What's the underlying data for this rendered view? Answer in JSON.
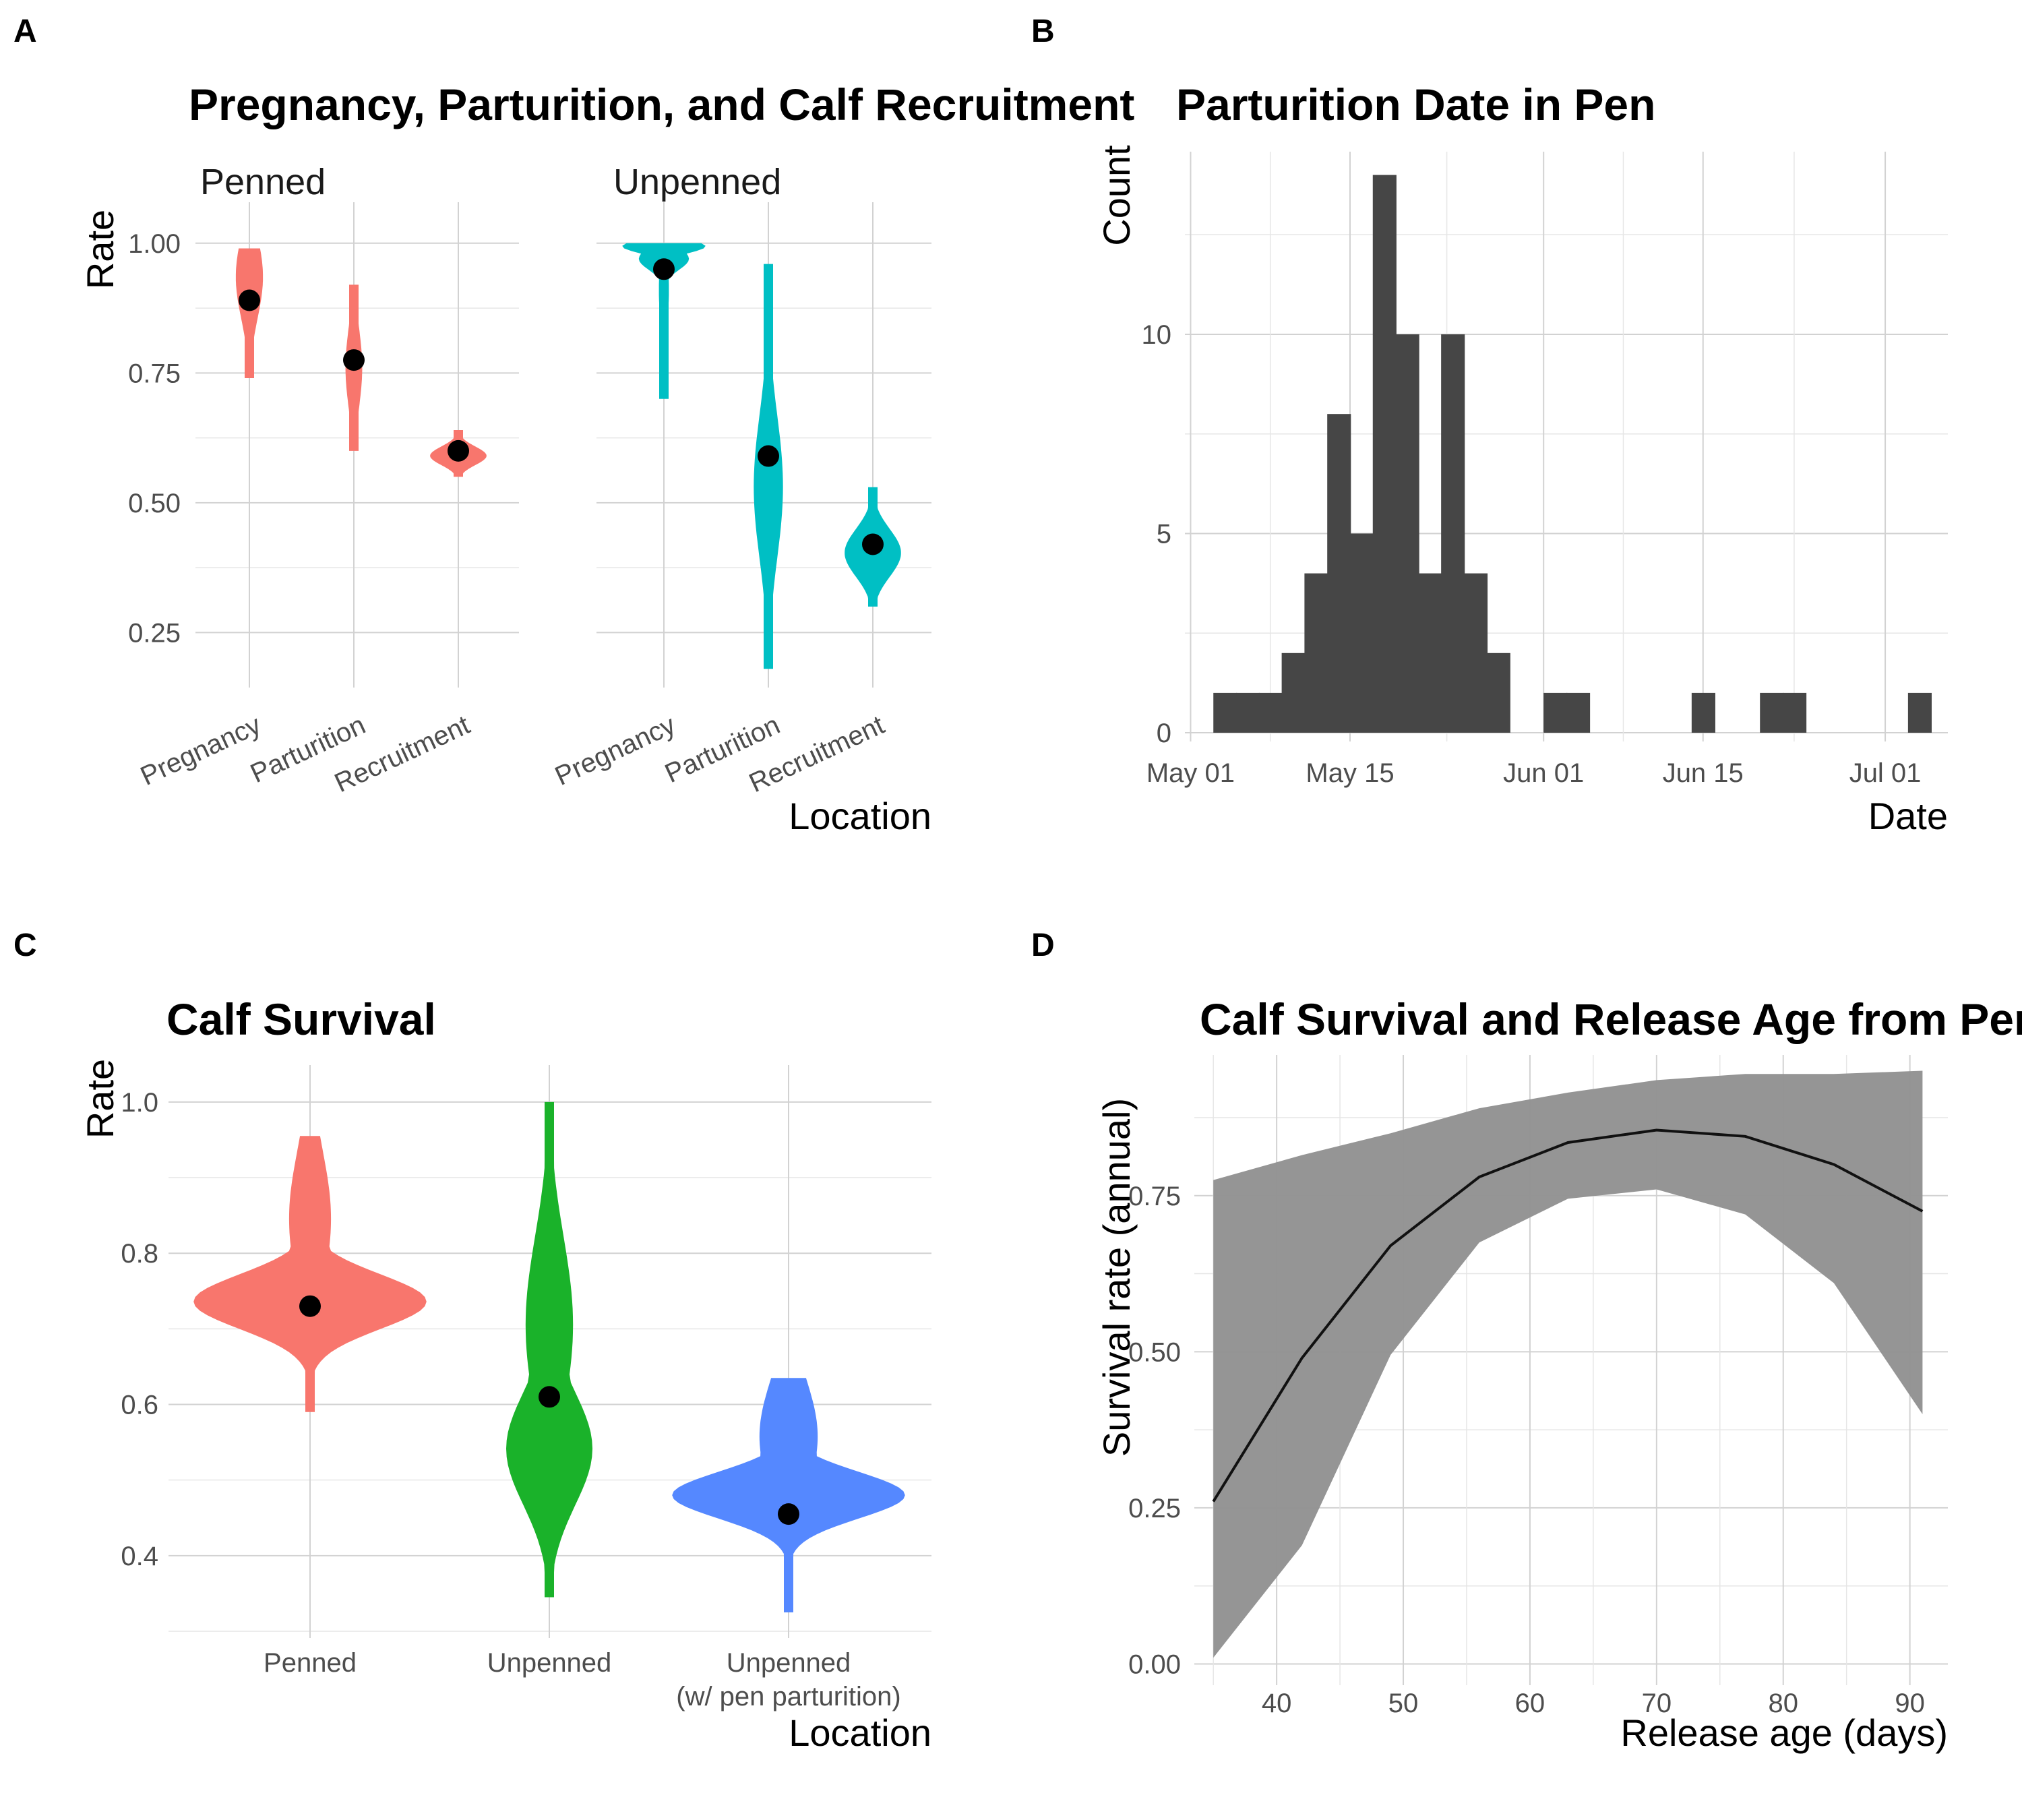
{
  "figure": {
    "panel_tags": [
      "A",
      "B",
      "C",
      "D"
    ]
  },
  "chart_data": [
    {
      "id": "A",
      "type": "violin",
      "title": "Pregnancy, Parturition, and Calf Recruitment",
      "xlabel": "Location",
      "ylabel": "Rate",
      "ylim": [
        0.17,
        1.04
      ],
      "yticks": [
        0.25,
        0.5,
        0.75,
        1.0
      ],
      "ytick_labels": [
        "0.25",
        "0.50",
        "0.75",
        "1.00"
      ],
      "facets": [
        {
          "name": "Penned",
          "color": "#F8766D",
          "categories": [
            "Pregnancy",
            "Parturition",
            "Recruitment"
          ],
          "means": [
            0.89,
            0.775,
            0.6
          ],
          "ranges": [
            [
              0.74,
              0.99
            ],
            [
              0.6,
              0.92
            ],
            [
              0.55,
              0.64
            ]
          ],
          "widths": [
            0.13,
            0.08,
            0.27
          ]
        },
        {
          "name": "Unpenned",
          "color": "#00BFC4",
          "categories": [
            "Pregnancy",
            "Parturition",
            "Recruitment"
          ],
          "means": [
            0.95,
            0.59,
            0.42
          ],
          "ranges": [
            [
              0.7,
              1.0
            ],
            [
              0.18,
              0.96
            ],
            [
              0.3,
              0.53
            ]
          ],
          "widths": [
            0.4,
            0.14,
            0.27
          ]
        }
      ],
      "grid": true
    },
    {
      "id": "B",
      "type": "bar",
      "title": "Parturition Date in Pen",
      "xlabel": "Date",
      "ylabel": "Count",
      "xticks": [
        "May 01",
        "May 15",
        "Jun 01",
        "Jun 15",
        "Jul 01"
      ],
      "ylim": [
        0,
        14.5
      ],
      "yticks": [
        0,
        5,
        10
      ],
      "ytick_labels": [
        "0",
        "5",
        "10"
      ],
      "bin_width_days": 2.05,
      "bins": [
        {
          "start": "May 03",
          "count": 1
        },
        {
          "start": "May 05",
          "count": 1
        },
        {
          "start": "May 07",
          "count": 1
        },
        {
          "start": "May 09",
          "count": 2
        },
        {
          "start": "May 11",
          "count": 4
        },
        {
          "start": "May 13",
          "count": 8
        },
        {
          "start": "May 15",
          "count": 5
        },
        {
          "start": "May 17",
          "count": 14
        },
        {
          "start": "May 19",
          "count": 10
        },
        {
          "start": "May 21",
          "count": 4
        },
        {
          "start": "May 23",
          "count": 10
        },
        {
          "start": "May 25",
          "count": 4
        },
        {
          "start": "May 27",
          "count": 2
        },
        {
          "start": "Jun 01",
          "count": 1
        },
        {
          "start": "Jun 03",
          "count": 1
        },
        {
          "start": "Jun 14",
          "count": 1
        },
        {
          "start": "Jun 20",
          "count": 1
        },
        {
          "start": "Jun 22",
          "count": 1
        },
        {
          "start": "Jul 03",
          "count": 1
        }
      ],
      "color": "#464646",
      "grid": true
    },
    {
      "id": "C",
      "type": "violin",
      "title": "Calf Survival",
      "xlabel": "Location",
      "ylabel": "Rate",
      "ylim": [
        0.3,
        1.04
      ],
      "yticks": [
        0.4,
        0.6,
        0.8,
        1.0
      ],
      "ytick_labels": [
        "0.4",
        "0.6",
        "0.8",
        "1.0"
      ],
      "categories": [
        "Penned",
        "Unpenned",
        "Unpenned\n(w/ pen parturition)"
      ],
      "category_lines": [
        [
          "Penned"
        ],
        [
          "Unpenned"
        ],
        [
          "Unpenned",
          "(w/ pen parturition)"
        ]
      ],
      "colors": [
        "#F8766D",
        "#1AB22A",
        "#5588FF"
      ],
      "means": [
        0.73,
        0.61,
        0.455
      ],
      "ranges": [
        [
          0.59,
          0.955
        ],
        [
          0.345,
          1.0
        ],
        [
          0.325,
          0.635
        ]
      ],
      "widths": [
        0.54,
        0.2,
        0.54
      ],
      "grid": true
    },
    {
      "id": "D",
      "type": "line",
      "title": "Calf Survival and Release Age from Pen",
      "xlabel": "Release age (days)",
      "ylabel": "Survival rate (annual)",
      "xlim": [
        33.5,
        93
      ],
      "ylim": [
        -0.02,
        0.97
      ],
      "xticks": [
        40,
        50,
        60,
        70,
        80,
        90
      ],
      "yticks": [
        0.0,
        0.25,
        0.5,
        0.75
      ],
      "ytick_labels": [
        "0.00",
        "0.25",
        "0.50",
        "0.75"
      ],
      "x": [
        35,
        42,
        49,
        56,
        63,
        70,
        77,
        84,
        91
      ],
      "y": [
        0.26,
        0.49,
        0.67,
        0.78,
        0.835,
        0.855,
        0.845,
        0.8,
        0.725
      ],
      "lower": [
        0.01,
        0.19,
        0.495,
        0.675,
        0.745,
        0.76,
        0.72,
        0.61,
        0.4
      ],
      "upper": [
        0.775,
        0.815,
        0.85,
        0.89,
        0.915,
        0.935,
        0.945,
        0.945,
        0.95
      ],
      "line_color": "#111111",
      "band_color": "#929292",
      "grid": true
    }
  ]
}
